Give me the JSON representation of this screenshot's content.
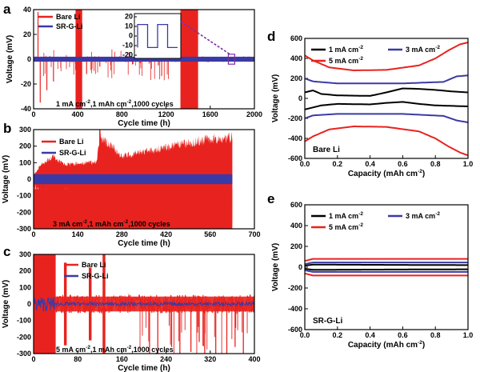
{
  "chart_data": [
    {
      "id": "a",
      "type": "line",
      "panel_label": "a",
      "xlabel": "Cycle time (h)",
      "ylabel": "Voltage (mV)",
      "xlim": [
        0,
        2000
      ],
      "ylim": [
        -40,
        40
      ],
      "xticks": [
        0,
        400,
        800,
        1200,
        1600,
        2000
      ],
      "yticks": [
        -40,
        -20,
        0,
        20,
        40
      ],
      "annotation": "1 mA cm-2,1 mAh cm-2,1000 cycles",
      "annotation_parts": [
        "1 mA cm",
        "-2",
        ",1 mAh cm",
        "-2",
        ",1000 cycles"
      ],
      "series": [
        {
          "name": "Bare Li",
          "color": "#e8231f",
          "baseline_amp": 2,
          "spikes": [
            [
              40,
              38
            ],
            [
              60,
              -35
            ],
            [
              120,
              -25
            ],
            [
              180,
              -18
            ],
            [
              390,
              40
            ],
            [
              410,
              38
            ],
            [
              430,
              -40
            ],
            [
              480,
              -12
            ],
            [
              600,
              -6
            ],
            [
              900,
              -4
            ],
            [
              1130,
              -5
            ]
          ],
          "bands": [
            [
              380,
              440,
              40
            ],
            [
              1330,
              1490,
              40
            ]
          ]
        },
        {
          "name": "SR-G-Li",
          "color": "#3a3aa6",
          "baseline_amp": 1.5,
          "spikes": [],
          "bands": []
        }
      ],
      "inset": {
        "yticks": [
          -20,
          -10,
          0,
          10,
          20
        ],
        "callout_x": 1800
      }
    },
    {
      "id": "b",
      "type": "line",
      "panel_label": "b",
      "xlabel": "Cycle time (h)",
      "ylabel": "Voltage (mV)",
      "xlim": [
        0,
        700
      ],
      "ylim": [
        -300,
        300
      ],
      "xticks": [
        0,
        140,
        280,
        420,
        560,
        700
      ],
      "yticks": [
        -300,
        -200,
        -100,
        0,
        100,
        200,
        300
      ],
      "annotation": "3 mA cm-2,1 mAh cm-2,1000 cycles",
      "annotation_parts": [
        "3 mA cm",
        "-2",
        ",1 mAh cm",
        "-2",
        ",1000 cycles"
      ],
      "series": [
        {
          "name": "Bare Li",
          "color": "#e8231f",
          "envelope": [
            [
              0,
              30
            ],
            [
              20,
              90
            ],
            [
              60,
              160
            ],
            [
              100,
              100
            ],
            [
              200,
              120
            ],
            [
              210,
              300
            ],
            [
              280,
              160
            ],
            [
              420,
              220
            ],
            [
              560,
              280
            ],
            [
              630,
              290
            ]
          ],
          "end_x": 630
        },
        {
          "name": "SR-G-Li",
          "color": "#3a3aa6",
          "envelope": [
            [
              0,
              30
            ],
            [
              630,
              30
            ]
          ],
          "end_x": 630
        }
      ]
    },
    {
      "id": "c",
      "type": "line",
      "panel_label": "c",
      "xlabel": "Cycle time (h)",
      "ylabel": "Voltage (mV)",
      "xlim": [
        0,
        400
      ],
      "ylim": [
        -300,
        300
      ],
      "xticks": [
        0,
        80,
        160,
        240,
        320,
        400
      ],
      "yticks": [
        -300,
        -200,
        -100,
        0,
        100,
        200,
        300
      ],
      "annotation": "5 mA cm-2,1 mAh cm-2,1000 cycles",
      "annotation_parts": [
        "5 mA cm",
        "-2",
        ",1 mAh cm",
        "-2",
        ",1000 cycles"
      ],
      "series": [
        {
          "name": "Bare Li",
          "color": "#e8231f",
          "spikes_down": [
            [
              210,
              -320
            ],
            [
              225,
              -300
            ],
            [
              250,
              -260
            ],
            [
              265,
              -320
            ],
            [
              285,
              -290
            ],
            [
              300,
              -230
            ],
            [
              310,
              -320
            ],
            [
              330,
              -300
            ],
            [
              350,
              -320
            ],
            [
              365,
              -260
            ],
            [
              380,
              -320
            ]
          ],
          "bands": [
            [
              0,
              40,
              300
            ],
            [
              55,
              60,
              250
            ],
            [
              100,
              105,
              220
            ],
            [
              125,
              130,
              300
            ]
          ]
        },
        {
          "name": "SR-G-Li",
          "color": "#3a3aa6"
        }
      ]
    },
    {
      "id": "d",
      "type": "line",
      "panel_label": "d",
      "xlabel": "Capacity (mAh cm-2)",
      "xlabel_parts": [
        "Capacity (mAh cm",
        "-2",
        ")"
      ],
      "ylabel": "Voltage (mV)",
      "xlim": [
        0,
        1.0
      ],
      "ylim": [
        -600,
        600
      ],
      "xticks": [
        0.0,
        0.2,
        0.4,
        0.6,
        0.8,
        1.0
      ],
      "yticks": [
        -600,
        -400,
        -200,
        0,
        200,
        400,
        600
      ],
      "tag": "Bare Li",
      "series": [
        {
          "name": "1 mA cm-2",
          "name_parts": [
            "1 mA cm",
            "-2"
          ],
          "color": "#000000",
          "upper": [
            [
              0,
              60
            ],
            [
              0.05,
              80
            ],
            [
              0.1,
              45
            ],
            [
              0.2,
              30
            ],
            [
              0.4,
              25
            ],
            [
              0.5,
              60
            ],
            [
              0.6,
              100
            ],
            [
              0.7,
              95
            ],
            [
              0.8,
              85
            ],
            [
              0.9,
              70
            ],
            [
              1.0,
              60
            ]
          ],
          "lower": [
            [
              0,
              -110
            ],
            [
              0.05,
              -90
            ],
            [
              0.1,
              -70
            ],
            [
              0.2,
              -55
            ],
            [
              0.4,
              -60
            ],
            [
              0.5,
              -45
            ],
            [
              0.6,
              -35
            ],
            [
              0.7,
              -55
            ],
            [
              0.8,
              -70
            ],
            [
              0.9,
              -75
            ],
            [
              1.0,
              -80
            ]
          ]
        },
        {
          "name": "3 mA cm-2",
          "name_parts": [
            "3 mA cm",
            "-2"
          ],
          "color": "#3a3aa6",
          "upper": [
            [
              0,
              200
            ],
            [
              0.05,
              170
            ],
            [
              0.2,
              150
            ],
            [
              0.6,
              150
            ],
            [
              0.85,
              165
            ],
            [
              0.93,
              220
            ],
            [
              1.0,
              230
            ]
          ],
          "lower": [
            [
              0,
              -200
            ],
            [
              0.05,
              -170
            ],
            [
              0.2,
              -155
            ],
            [
              0.6,
              -155
            ],
            [
              0.85,
              -175
            ],
            [
              0.93,
              -220
            ],
            [
              1.0,
              -240
            ]
          ]
        },
        {
          "name": "5 mA cm-2",
          "name_parts": [
            "5 mA cm",
            "-2"
          ],
          "color": "#e8231f",
          "upper": [
            [
              0,
              430
            ],
            [
              0.05,
              380
            ],
            [
              0.15,
              310
            ],
            [
              0.3,
              280
            ],
            [
              0.5,
              285
            ],
            [
              0.7,
              330
            ],
            [
              0.8,
              400
            ],
            [
              0.88,
              480
            ],
            [
              0.95,
              540
            ],
            [
              1.0,
              560
            ]
          ],
          "lower": [
            [
              0,
              -430
            ],
            [
              0.05,
              -380
            ],
            [
              0.15,
              -310
            ],
            [
              0.3,
              -280
            ],
            [
              0.5,
              -285
            ],
            [
              0.7,
              -330
            ],
            [
              0.8,
              -400
            ],
            [
              0.88,
              -480
            ],
            [
              0.95,
              -540
            ],
            [
              1.0,
              -570
            ]
          ]
        }
      ]
    },
    {
      "id": "e",
      "type": "line",
      "panel_label": "e",
      "xlabel": "Capacity (mAh cm-2)",
      "xlabel_parts": [
        "Capacity (mAh cm",
        "-2",
        ")"
      ],
      "ylabel": "Voltage (mV)",
      "xlim": [
        0,
        1.0
      ],
      "ylim": [
        -600,
        600
      ],
      "xticks": [
        0.0,
        0.2,
        0.4,
        0.6,
        0.8,
        1.0
      ],
      "yticks": [
        -600,
        -400,
        -200,
        0,
        200,
        400,
        600
      ],
      "tag": "SR-G-Li",
      "series": [
        {
          "name": "1 mA cm-2",
          "name_parts": [
            "1 mA cm",
            "-2"
          ],
          "color": "#000000",
          "upper": [
            [
              0,
              15
            ],
            [
              0.05,
              25
            ],
            [
              1.0,
              20
            ]
          ],
          "lower": [
            [
              0,
              -15
            ],
            [
              0.05,
              -25
            ],
            [
              1.0,
              -20
            ]
          ]
        },
        {
          "name": "3 mA cm-2",
          "name_parts": [
            "3 mA cm",
            "-2"
          ],
          "color": "#3a3aa6",
          "upper": [
            [
              0,
              30
            ],
            [
              0.05,
              45
            ],
            [
              1.0,
              45
            ]
          ],
          "lower": [
            [
              0,
              -30
            ],
            [
              0.05,
              -45
            ],
            [
              1.0,
              -45
            ]
          ]
        },
        {
          "name": "5 mA cm-2",
          "name_parts": [
            "5 mA cm",
            "-2"
          ],
          "color": "#e8231f",
          "upper": [
            [
              0,
              60
            ],
            [
              0.05,
              80
            ],
            [
              1.0,
              80
            ]
          ],
          "lower": [
            [
              0,
              -60
            ],
            [
              0.05,
              -80
            ],
            [
              1.0,
              -80
            ]
          ]
        }
      ]
    }
  ]
}
